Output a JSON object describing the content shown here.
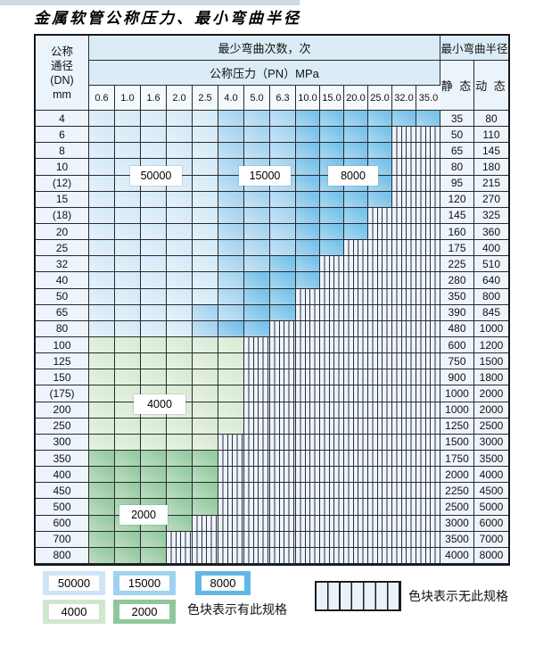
{
  "page": {
    "title": "金属软管公称压力、最小弯曲半径"
  },
  "table": {
    "header": {
      "dn_line1": "公称",
      "dn_line2": "通径",
      "dn_line3": "(DN)",
      "dn_line4": "mm",
      "min_bend_cycles": "最少弯曲次数，次",
      "nominal_pressure": "公称压力（PN）MPa",
      "pressures": [
        "0.6",
        "1.0",
        "1.6",
        "2.0",
        "2.5",
        "4.0",
        "5.0",
        "6.3",
        "10.0",
        "15.0",
        "20.0",
        "25.0",
        "32.0",
        "35.0"
      ],
      "min_bend_radius": "最小弯曲半径",
      "static_label": "静 态",
      "dynamic_label": "动 态"
    },
    "rows": [
      {
        "dn": "4",
        "zones": [
          5,
          3,
          6,
          0,
          0
        ],
        "static": "35",
        "dynamic": "80"
      },
      {
        "dn": "6",
        "zones": [
          5,
          3,
          4,
          0,
          0
        ],
        "static": "50",
        "dynamic": "110"
      },
      {
        "dn": "8",
        "zones": [
          5,
          3,
          4,
          0,
          0
        ],
        "static": "65",
        "dynamic": "145"
      },
      {
        "dn": "10",
        "zones": [
          5,
          3,
          4,
          0,
          0
        ],
        "static": "80",
        "dynamic": "180"
      },
      {
        "dn": "(12)",
        "zones": [
          5,
          3,
          4,
          0,
          0
        ],
        "static": "95",
        "dynamic": "215"
      },
      {
        "dn": "15",
        "zones": [
          5,
          3,
          4,
          0,
          0
        ],
        "static": "120",
        "dynamic": "270"
      },
      {
        "dn": "(18)",
        "zones": [
          5,
          3,
          3,
          0,
          0
        ],
        "static": "145",
        "dynamic": "325"
      },
      {
        "dn": "20",
        "zones": [
          5,
          3,
          3,
          0,
          0
        ],
        "static": "160",
        "dynamic": "360"
      },
      {
        "dn": "25",
        "zones": [
          5,
          3,
          2,
          0,
          0
        ],
        "static": "175",
        "dynamic": "400"
      },
      {
        "dn": "32",
        "zones": [
          5,
          2,
          2,
          0,
          0
        ],
        "static": "225",
        "dynamic": "510"
      },
      {
        "dn": "40",
        "zones": [
          5,
          1,
          3,
          0,
          0
        ],
        "static": "280",
        "dynamic": "640"
      },
      {
        "dn": "50",
        "zones": [
          5,
          1,
          2,
          0,
          0
        ],
        "static": "350",
        "dynamic": "800"
      },
      {
        "dn": "65",
        "zones": [
          4,
          2,
          2,
          0,
          0
        ],
        "static": "390",
        "dynamic": "845"
      },
      {
        "dn": "80",
        "zones": [
          4,
          1,
          2,
          0,
          0
        ],
        "static": "480",
        "dynamic": "1000"
      },
      {
        "dn": "100",
        "zones": [
          0,
          0,
          0,
          6,
          0
        ],
        "static": "600",
        "dynamic": "1200"
      },
      {
        "dn": "125",
        "zones": [
          0,
          0,
          0,
          6,
          0
        ],
        "static": "750",
        "dynamic": "1500"
      },
      {
        "dn": "150",
        "zones": [
          0,
          0,
          0,
          6,
          0
        ],
        "static": "900",
        "dynamic": "1800"
      },
      {
        "dn": "(175)",
        "zones": [
          0,
          0,
          0,
          6,
          0
        ],
        "static": "1000",
        "dynamic": "2000"
      },
      {
        "dn": "200",
        "zones": [
          0,
          0,
          0,
          6,
          0
        ],
        "static": "1000",
        "dynamic": "2000"
      },
      {
        "dn": "250",
        "zones": [
          0,
          0,
          0,
          6,
          0
        ],
        "static": "1250",
        "dynamic": "2500"
      },
      {
        "dn": "300",
        "zones": [
          0,
          0,
          0,
          5,
          0
        ],
        "static": "1500",
        "dynamic": "3000"
      },
      {
        "dn": "350",
        "zones": [
          0,
          0,
          0,
          0,
          5
        ],
        "static": "1750",
        "dynamic": "3500"
      },
      {
        "dn": "400",
        "zones": [
          0,
          0,
          0,
          0,
          5
        ],
        "static": "2000",
        "dynamic": "4000"
      },
      {
        "dn": "450",
        "zones": [
          0,
          0,
          0,
          0,
          5
        ],
        "static": "2250",
        "dynamic": "4500"
      },
      {
        "dn": "500",
        "zones": [
          0,
          0,
          0,
          0,
          5
        ],
        "static": "2500",
        "dynamic": "5000"
      },
      {
        "dn": "600",
        "zones": [
          0,
          0,
          0,
          0,
          4
        ],
        "static": "3000",
        "dynamic": "6000"
      },
      {
        "dn": "700",
        "zones": [
          0,
          0,
          0,
          0,
          3
        ],
        "static": "3500",
        "dynamic": "7000"
      },
      {
        "dn": "800",
        "zones": [
          0,
          0,
          0,
          0,
          3
        ],
        "static": "4000",
        "dynamic": "8000"
      }
    ]
  },
  "zone_labels": {
    "l50000": "50000",
    "l15000": "15000",
    "l8000": "8000",
    "l4000": "4000",
    "l2000": "2000"
  },
  "legend": {
    "items": [
      {
        "name": "50000",
        "label": "50000",
        "color": "#cfe5f6"
      },
      {
        "name": "15000",
        "label": "15000",
        "color": "#9fd2ef"
      },
      {
        "name": "8000",
        "label": "8000",
        "color": "#62b7e5"
      },
      {
        "name": "4000",
        "label": "4000",
        "color": "#cfe7cd"
      },
      {
        "name": "2000",
        "label": "2000",
        "color": "#8fc79b"
      }
    ],
    "has_spec_note": "色块表示有此规格",
    "no_spec_note": "色块表示无此规格"
  },
  "colors": {
    "cell_50000": "#d6eaf8",
    "cell_15000": "#a6d4f0",
    "cell_8000": "#79c2e9",
    "cell_4000": "#d9ebd4",
    "cell_2000": "#97cba1"
  }
}
